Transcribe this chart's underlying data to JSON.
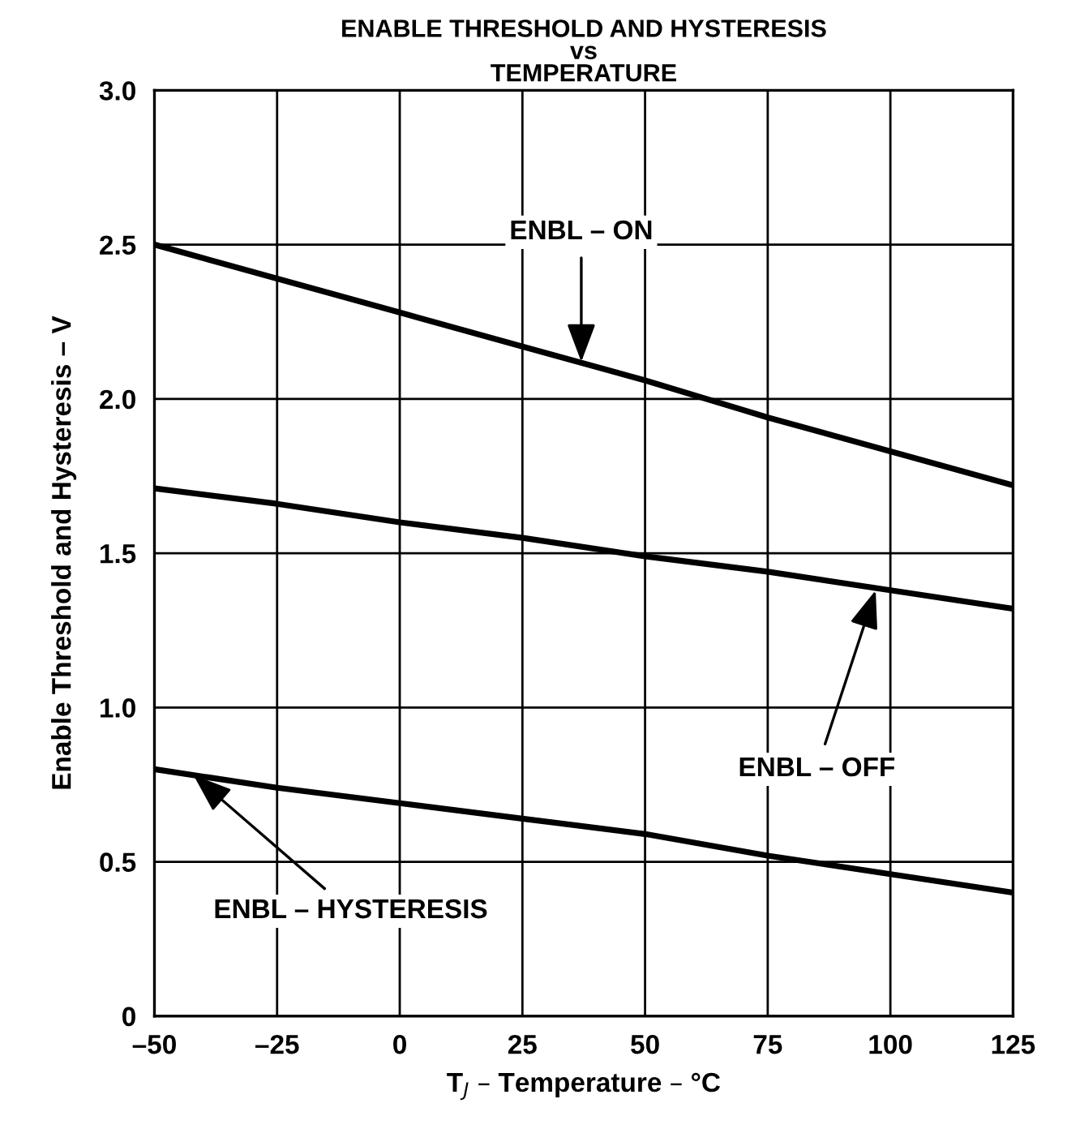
{
  "chart_data": {
    "type": "line",
    "title": "ENABLE THRESHOLD AND HYSTERESIS\nvs\nTEMPERATURE",
    "xlabel": "T$_{J}$ – Temperature – °C",
    "ylabel": "Enable Threshold and Hysteresis – V",
    "x": [
      -50,
      -25,
      0,
      25,
      50,
      75,
      100,
      125
    ],
    "series": [
      {
        "color": "#000000",
        "values": [
          2.5,
          2.39,
          2.28,
          2.17,
          2.06,
          1.94,
          1.83,
          1.72
        ]
      },
      {
        "color": "#000000",
        "values": [
          1.71,
          1.66,
          1.6,
          1.55,
          1.49,
          1.44,
          1.38,
          1.32
        ]
      },
      {
        "color": "#000000",
        "values": [
          0.8,
          0.74,
          0.69,
          0.64,
          0.59,
          0.52,
          0.46,
          0.4
        ]
      }
    ],
    "annotations": [
      {
        "text": "ENBL – ON",
        "x": 37,
        "y": 2.12
      },
      {
        "text": "ENBL – OFF",
        "x": 97,
        "y": 1.38
      },
      {
        "text": "ENBL – HYSTERESIS",
        "x": -42,
        "y": 0.78
      }
    ],
    "xlim": [
      -50,
      125
    ],
    "ylim": [
      0,
      3
    ],
    "xticks": [
      {
        "value": -50,
        "label": "–50"
      },
      {
        "value": -25,
        "label": "–25"
      },
      0,
      25,
      50,
      75,
      100,
      125
    ],
    "yticks": [
      0,
      0.5,
      {
        "value": 1,
        "label": "1.0"
      },
      1.5,
      {
        "value": 2,
        "label": "2.0"
      },
      2.5,
      {
        "value": 3,
        "label": "3.0"
      }
    ],
    "grid": true,
    "marker": "none",
    "line_style": "solid",
    "legend": false
  }
}
